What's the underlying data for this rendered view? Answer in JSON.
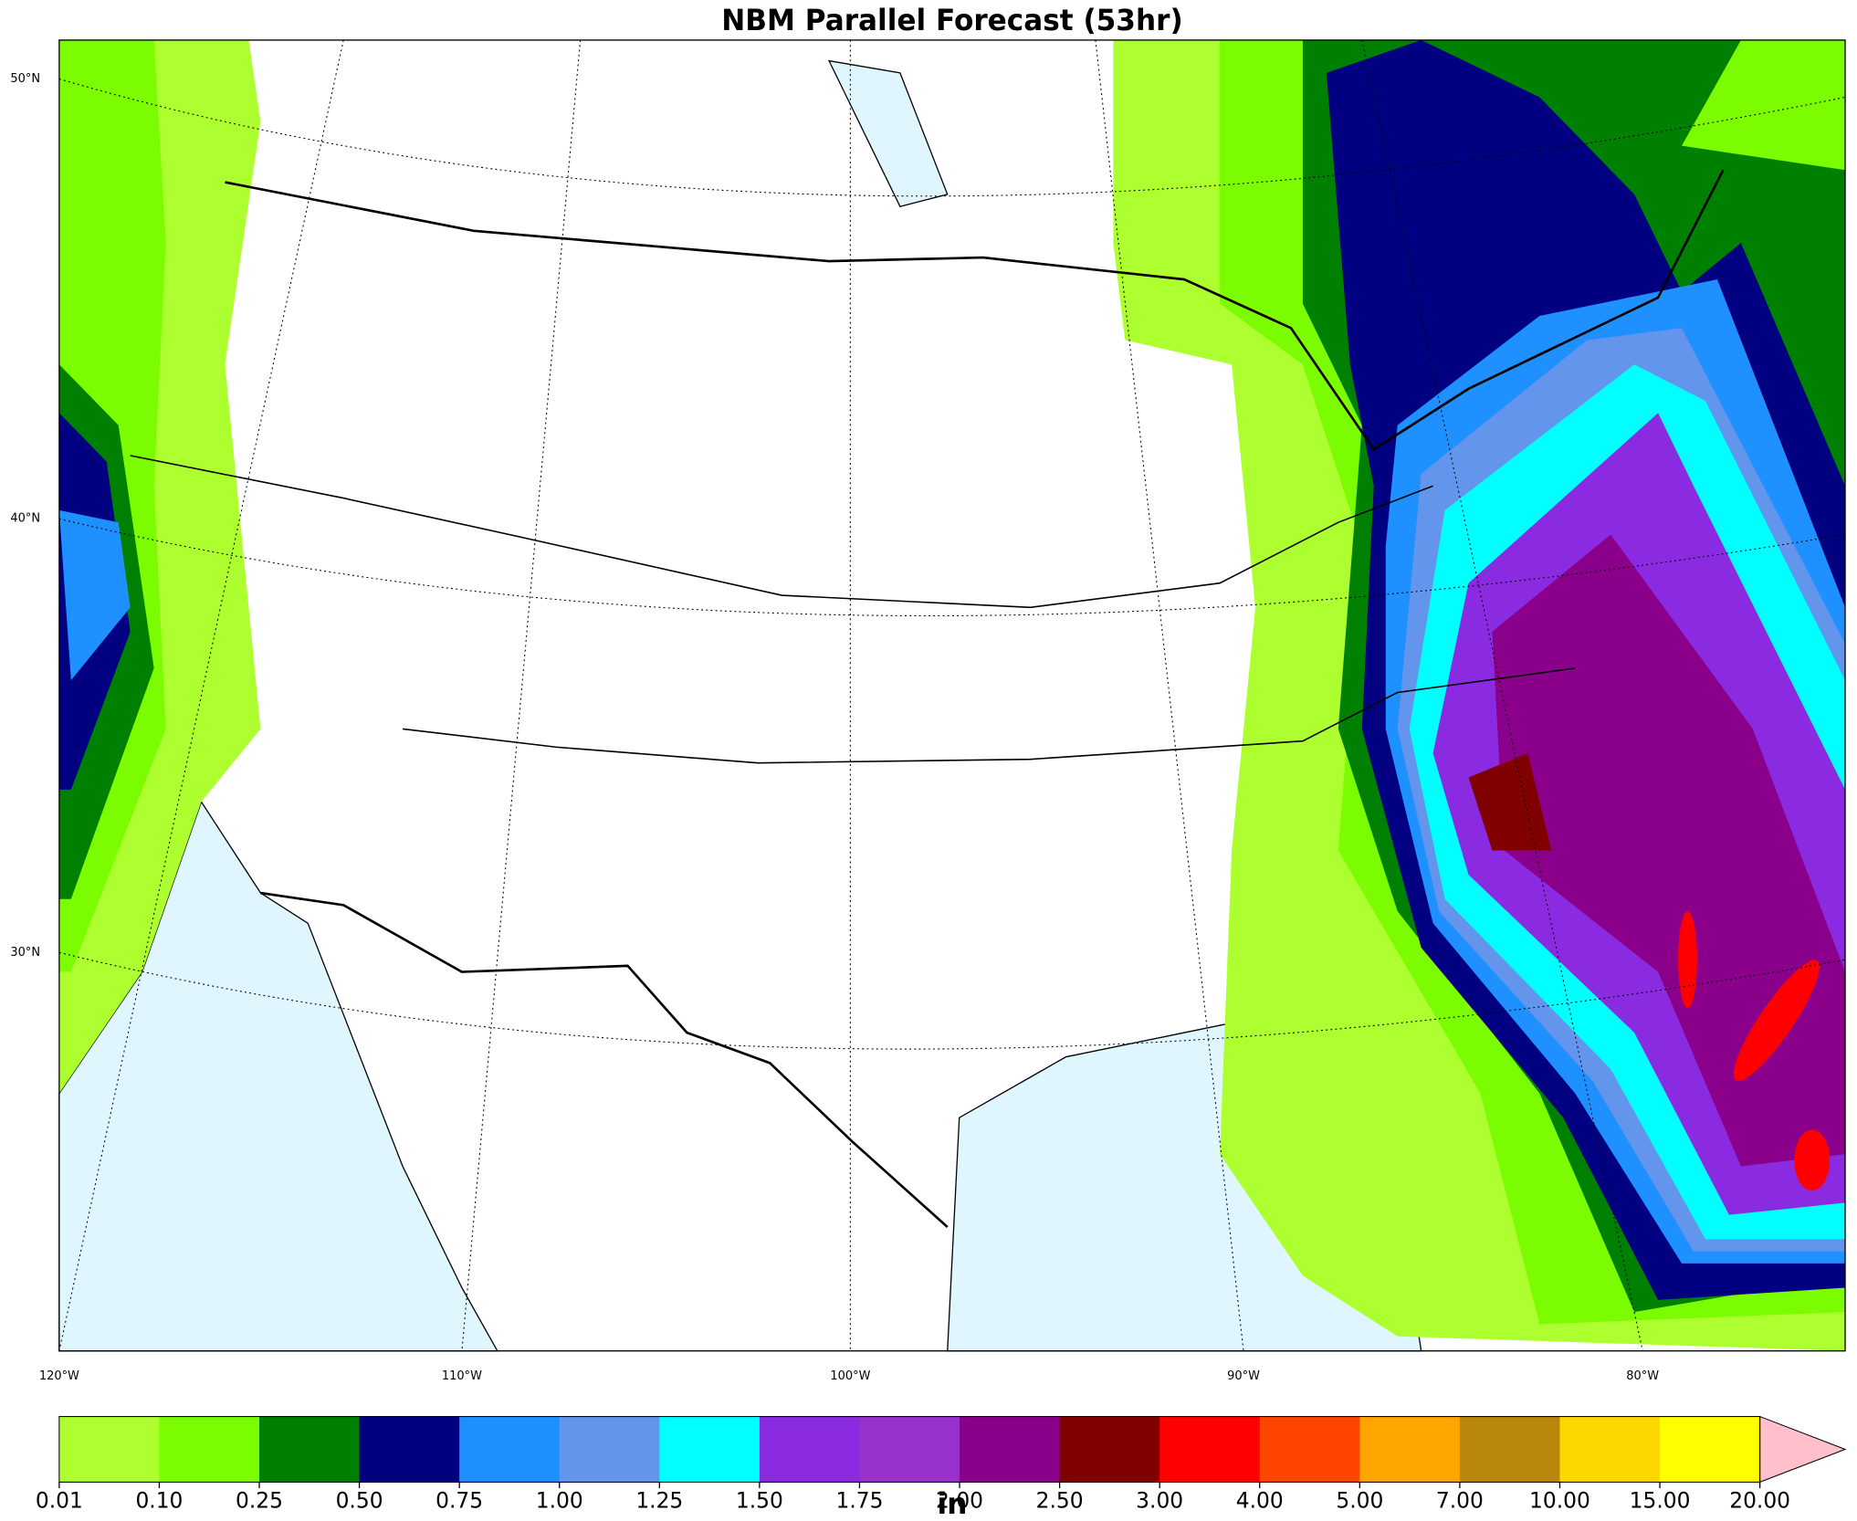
{
  "title": "NBM Parallel Forecast (53hr)",
  "map": {
    "lat_labels": [
      "50°N",
      "40°N",
      "30°N"
    ],
    "lon_labels": [
      "120°W",
      "110°W",
      "100°W",
      "90°W",
      "80°W"
    ]
  },
  "colorbar": {
    "label": "in",
    "ticks": [
      {
        "value": 0.01,
        "label": "0.01"
      },
      {
        "value": 0.1,
        "label": "0.10"
      },
      {
        "value": 0.25,
        "label": "0.25"
      },
      {
        "value": 0.5,
        "label": "0.50"
      },
      {
        "value": 0.75,
        "label": "0.75"
      },
      {
        "value": 1,
        "label": "1.00"
      },
      {
        "value": 1.25,
        "label": "1.25"
      },
      {
        "value": 1.5,
        "label": "1.50"
      },
      {
        "value": 1.75,
        "label": "1.75"
      },
      {
        "value": 2,
        "label": "2.00"
      },
      {
        "value": 2.5,
        "label": "2.50"
      },
      {
        "value": 3,
        "label": "3.00"
      },
      {
        "value": 4,
        "label": "4.00"
      },
      {
        "value": 5,
        "label": "5.00"
      },
      {
        "value": 7,
        "label": "7.00"
      },
      {
        "value": 10,
        "label": "10.00"
      },
      {
        "value": 15,
        "label": "15.00"
      },
      {
        "value": 20,
        "label": "20.00"
      }
    ],
    "colors": [
      "#adff2f",
      "#7cfc00",
      "#008000",
      "#000080",
      "#1e90ff",
      "#6495ed",
      "#00ffff",
      "#8a2be2",
      "#9932cc",
      "#8b008b",
      "#800000",
      "#ff0000",
      "#ff4500",
      "#ffa500",
      "#b8860b",
      "#ffd700",
      "#ffff00"
    ],
    "extend_color": "#ffc0cb"
  }
}
